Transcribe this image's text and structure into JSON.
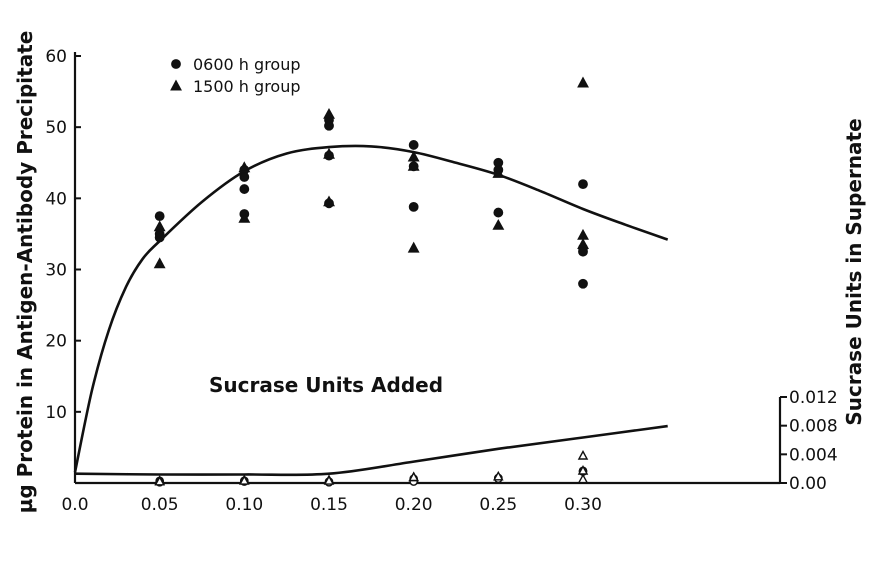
{
  "chart_data": {
    "type": "scatter",
    "title": "",
    "xlabel": "Sucrase Units Added",
    "ylabel": "µg Protein in Antigen-Antibody Precipitate",
    "y2label": "Sucrase Units in Supernate",
    "xlim": [
      0.0,
      0.35
    ],
    "ylim": [
      0,
      60
    ],
    "y2lim": [
      0.0,
      0.012
    ],
    "x_ticks": [
      "0.0",
      "0.05",
      "0.10",
      "0.15",
      "0.20",
      "0.25",
      "0.30"
    ],
    "x_tick_values": [
      0.0,
      0.05,
      0.1,
      0.15,
      0.2,
      0.25,
      0.3
    ],
    "y_ticks": [
      "10",
      "20",
      "30",
      "40",
      "50",
      "60"
    ],
    "y_tick_values": [
      10,
      20,
      30,
      40,
      50,
      60
    ],
    "y2_ticks": [
      "0.00",
      "0.004",
      "0.008",
      "0.012"
    ],
    "y2_tick_values": [
      0.0,
      0.004,
      0.008,
      0.012
    ],
    "legend": {
      "position": "top-left",
      "entries": [
        {
          "marker": "circle",
          "label": "0600 h group"
        },
        {
          "marker": "triangle",
          "label": "1500 h group"
        }
      ]
    },
    "series": [
      {
        "name": "0600 h group",
        "axis": "left",
        "marker": "filled-circle",
        "points": [
          [
            0.05,
            37.5
          ],
          [
            0.05,
            34.5
          ],
          [
            0.05,
            35.0
          ],
          [
            0.1,
            44.0
          ],
          [
            0.1,
            43.0
          ],
          [
            0.1,
            41.3
          ],
          [
            0.1,
            37.8
          ],
          [
            0.15,
            51.0
          ],
          [
            0.15,
            50.2
          ],
          [
            0.15,
            46.0
          ],
          [
            0.15,
            39.3
          ],
          [
            0.2,
            47.5
          ],
          [
            0.2,
            44.5
          ],
          [
            0.2,
            38.8
          ],
          [
            0.25,
            45.0
          ],
          [
            0.25,
            44.0
          ],
          [
            0.25,
            38.0
          ],
          [
            0.3,
            42.0
          ],
          [
            0.3,
            33.0
          ],
          [
            0.3,
            32.5
          ],
          [
            0.3,
            28.0
          ]
        ]
      },
      {
        "name": "1500 h group",
        "axis": "left",
        "marker": "filled-triangle",
        "points": [
          [
            0.05,
            36.0
          ],
          [
            0.05,
            30.8
          ],
          [
            0.1,
            44.3
          ],
          [
            0.1,
            37.2
          ],
          [
            0.15,
            51.8
          ],
          [
            0.15,
            46.2
          ],
          [
            0.15,
            39.5
          ],
          [
            0.2,
            45.8
          ],
          [
            0.2,
            44.5
          ],
          [
            0.2,
            33.0
          ],
          [
            0.25,
            43.5
          ],
          [
            0.25,
            36.2
          ],
          [
            0.3,
            56.2
          ],
          [
            0.3,
            34.8
          ],
          [
            0.3,
            33.5
          ]
        ]
      },
      {
        "name": "0600 h group",
        "axis": "right",
        "marker": "open-circle",
        "points": [
          [
            0.05,
            0.0003
          ],
          [
            0.05,
            0.0002
          ],
          [
            0.05,
            0.0001
          ],
          [
            0.1,
            0.0003
          ],
          [
            0.1,
            0.0003
          ],
          [
            0.1,
            0.0002
          ],
          [
            0.15,
            0.0002
          ],
          [
            0.15,
            0.0001
          ],
          [
            0.2,
            0.0006
          ],
          [
            0.2,
            0.0004
          ],
          [
            0.2,
            0.0002
          ],
          [
            0.25,
            0.0007
          ],
          [
            0.25,
            0.0007
          ],
          [
            0.25,
            0.0006
          ],
          [
            0.3,
            0.0017
          ],
          [
            0.3,
            0.0016
          ]
        ]
      },
      {
        "name": "1500 h group",
        "axis": "right",
        "marker": "open-triangle",
        "points": [
          [
            0.05,
            0.0003
          ],
          [
            0.05,
            0.0002
          ],
          [
            0.1,
            0.0004
          ],
          [
            0.1,
            0.0003
          ],
          [
            0.15,
            0.0004
          ],
          [
            0.15,
            0.0003
          ],
          [
            0.2,
            0.0008
          ],
          [
            0.2,
            0.0008
          ],
          [
            0.25,
            0.0009
          ],
          [
            0.3,
            0.0038
          ],
          [
            0.3,
            0.0017
          ],
          [
            0.3,
            0.0005
          ]
        ]
      }
    ],
    "curves": [
      {
        "axis": "left",
        "points": [
          [
            0.0,
            1.5
          ],
          [
            0.01,
            13.0
          ],
          [
            0.02,
            21.5
          ],
          [
            0.03,
            27.5
          ],
          [
            0.04,
            31.5
          ],
          [
            0.05,
            34.0
          ],
          [
            0.075,
            39.5
          ],
          [
            0.1,
            43.8
          ],
          [
            0.125,
            46.3
          ],
          [
            0.15,
            47.2
          ],
          [
            0.175,
            47.3
          ],
          [
            0.2,
            46.5
          ],
          [
            0.225,
            45.0
          ],
          [
            0.25,
            43.3
          ],
          [
            0.275,
            41.0
          ],
          [
            0.3,
            38.5
          ],
          [
            0.325,
            36.3
          ],
          [
            0.35,
            34.2
          ]
        ]
      },
      {
        "axis": "left",
        "points": [
          [
            0.0,
            1.3
          ],
          [
            0.05,
            1.2
          ],
          [
            0.1,
            1.2
          ],
          [
            0.15,
            1.3
          ],
          [
            0.2,
            3.0
          ],
          [
            0.25,
            4.8
          ],
          [
            0.3,
            6.4
          ],
          [
            0.35,
            8.0
          ]
        ]
      }
    ]
  }
}
